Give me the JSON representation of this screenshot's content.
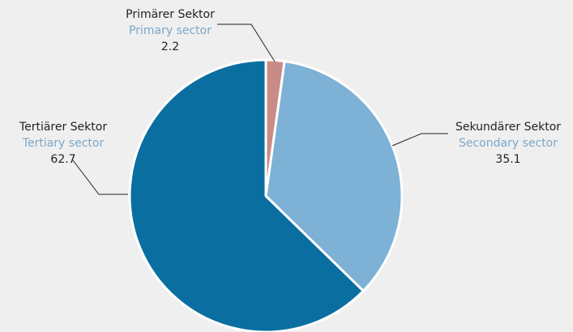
{
  "chart_data": {
    "type": "pie",
    "categories": [
      "Primärer Sektor",
      "Sekundärer Sektor",
      "Tertiärer Sektor"
    ],
    "categories_en": [
      "Primary sector",
      "Secondary sector",
      "Tertiary sector"
    ],
    "values": [
      2.2,
      35.1,
      62.7
    ],
    "colors": [
      "#c98b87",
      "#7db1d5",
      "#0a6fa0"
    ],
    "legend": false
  }
}
